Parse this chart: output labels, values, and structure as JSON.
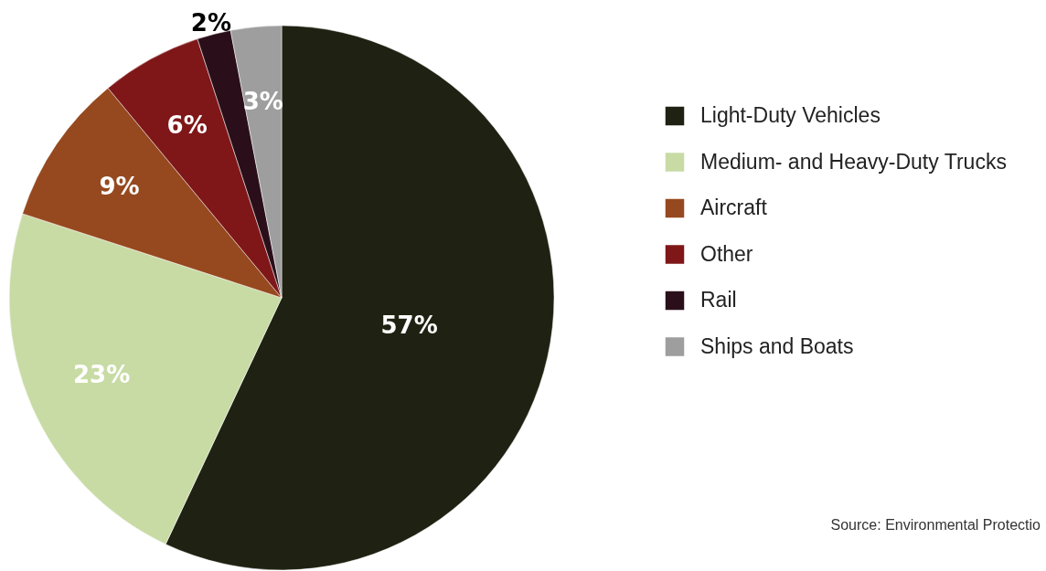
{
  "chart_data": {
    "type": "pie",
    "categories": [
      "Light-Duty Vehicles",
      "Medium- and Heavy-Duty Trucks",
      "Aircraft",
      "Other",
      "Rail",
      "Ships and Boats"
    ],
    "values": [
      57,
      23,
      9,
      6,
      2,
      3
    ],
    "colors": [
      "#1f2212",
      "#c8dba5",
      "#96491f",
      "#7f1719",
      "#2a0f1a",
      "#9e9e9e"
    ],
    "value_labels": [
      "57%",
      "23%",
      "9%",
      "6%",
      "2%",
      "3%"
    ],
    "legend": "right",
    "annotations": [
      "Source: Environmental Protectio"
    ]
  }
}
